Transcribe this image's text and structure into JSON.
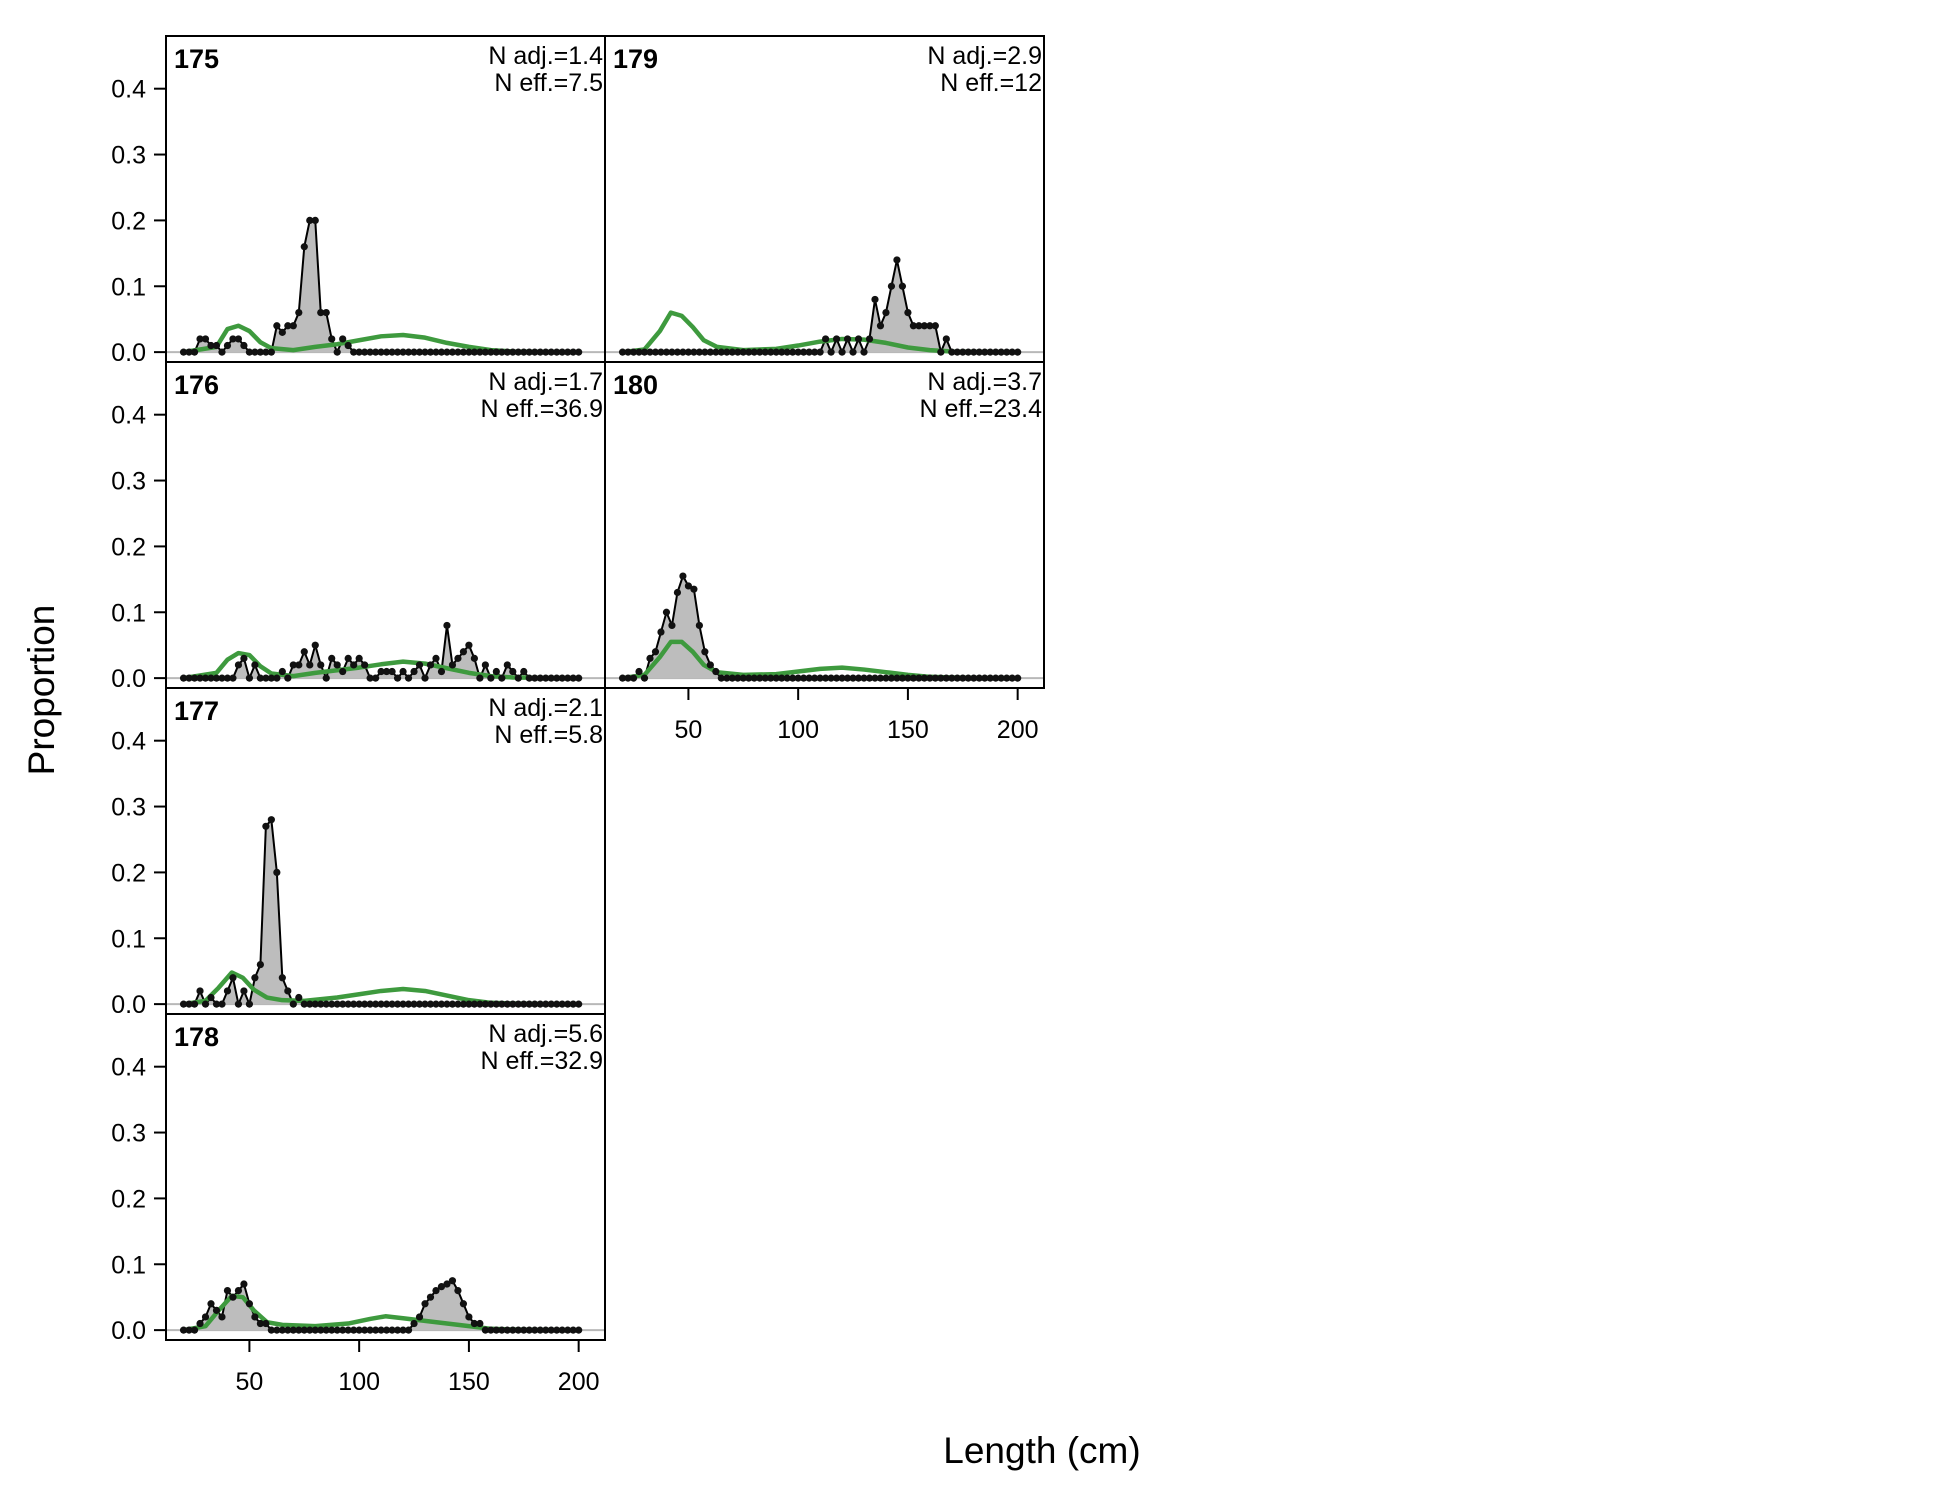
{
  "chart_data": {
    "type": "area",
    "xlabel": "Length (cm)",
    "ylabel": "Proportion",
    "xlim": [
      12,
      212
    ],
    "ylim": [
      -0.015,
      0.48
    ],
    "x_ticks": [
      50,
      100,
      150,
      200
    ],
    "y_ticks": [
      0.0,
      0.1,
      0.2,
      0.3,
      0.4
    ],
    "y_tick_labels": [
      "0.0",
      "0.1",
      "0.2",
      "0.3",
      "0.4"
    ],
    "bin_start": 20,
    "bin_width": 2.5,
    "colors": {
      "observed_fill": "#bdbdbd",
      "observed_line": "#000000",
      "expected_line": "#3e9a3e",
      "zero_line": "#b8b8b8"
    },
    "panels": [
      {
        "id": "175",
        "n_adj": "N adj.=1.4",
        "n_eff": "N eff.=7.5",
        "observed": [
          [
            27.5,
            0.02
          ],
          [
            30,
            0.02
          ],
          [
            32.5,
            0.01
          ],
          [
            35,
            0.01
          ],
          [
            40,
            0.01
          ],
          [
            42.5,
            0.02
          ],
          [
            45,
            0.02
          ],
          [
            47.5,
            0.01
          ],
          [
            62.5,
            0.04
          ],
          [
            65,
            0.03
          ],
          [
            67.5,
            0.04
          ],
          [
            70,
            0.04
          ],
          [
            72.5,
            0.06
          ],
          [
            75,
            0.16
          ],
          [
            77.5,
            0.2
          ],
          [
            80,
            0.2
          ],
          [
            82.5,
            0.06
          ],
          [
            85,
            0.06
          ],
          [
            87.5,
            0.02
          ],
          [
            92.5,
            0.02
          ],
          [
            95,
            0.01
          ]
        ],
        "expected": [
          [
            20,
            0
          ],
          [
            35,
            0.008
          ],
          [
            40,
            0.035
          ],
          [
            45,
            0.04
          ],
          [
            50,
            0.032
          ],
          [
            55,
            0.015
          ],
          [
            60,
            0.006
          ],
          [
            70,
            0.003
          ],
          [
            80,
            0.008
          ],
          [
            90,
            0.012
          ],
          [
            100,
            0.018
          ],
          [
            110,
            0.024
          ],
          [
            120,
            0.026
          ],
          [
            130,
            0.022
          ],
          [
            140,
            0.014
          ],
          [
            150,
            0.008
          ],
          [
            160,
            0.003
          ],
          [
            170,
            0.001
          ],
          [
            200,
            0
          ]
        ]
      },
      {
        "id": "176",
        "n_adj": "N adj.=1.7",
        "n_eff": "N eff.=36.9",
        "observed": [
          [
            45,
            0.02
          ],
          [
            47.5,
            0.03
          ],
          [
            52.5,
            0.02
          ],
          [
            65,
            0.01
          ],
          [
            70,
            0.02
          ],
          [
            72.5,
            0.02
          ],
          [
            75,
            0.04
          ],
          [
            77.5,
            0.02
          ],
          [
            80,
            0.05
          ],
          [
            82.5,
            0.02
          ],
          [
            87.5,
            0.03
          ],
          [
            90,
            0.02
          ],
          [
            92.5,
            0.01
          ],
          [
            95,
            0.03
          ],
          [
            97.5,
            0.02
          ],
          [
            100,
            0.03
          ],
          [
            102.5,
            0.02
          ],
          [
            110,
            0.01
          ],
          [
            112.5,
            0.01
          ],
          [
            115,
            0.01
          ],
          [
            120,
            0.01
          ],
          [
            125,
            0.01
          ],
          [
            127.5,
            0.02
          ],
          [
            132.5,
            0.02
          ],
          [
            135,
            0.03
          ],
          [
            137.5,
            0.01
          ],
          [
            140,
            0.08
          ],
          [
            142.5,
            0.02
          ],
          [
            145,
            0.03
          ],
          [
            147.5,
            0.04
          ],
          [
            150,
            0.05
          ],
          [
            152.5,
            0.03
          ],
          [
            157.5,
            0.02
          ],
          [
            162.5,
            0.01
          ],
          [
            167.5,
            0.02
          ],
          [
            170,
            0.01
          ],
          [
            175,
            0.01
          ]
        ],
        "expected": [
          [
            20,
            0
          ],
          [
            35,
            0.008
          ],
          [
            40,
            0.028
          ],
          [
            45,
            0.038
          ],
          [
            50,
            0.035
          ],
          [
            55,
            0.018
          ],
          [
            60,
            0.007
          ],
          [
            70,
            0.003
          ],
          [
            80,
            0.008
          ],
          [
            90,
            0.012
          ],
          [
            100,
            0.016
          ],
          [
            110,
            0.021
          ],
          [
            120,
            0.025
          ],
          [
            130,
            0.022
          ],
          [
            140,
            0.015
          ],
          [
            150,
            0.008
          ],
          [
            160,
            0.003
          ],
          [
            170,
            0.001
          ],
          [
            200,
            0
          ]
        ]
      },
      {
        "id": "177",
        "n_adj": "N adj.=2.1",
        "n_eff": "N eff.=5.8",
        "observed": [
          [
            27.5,
            0.02
          ],
          [
            32.5,
            0.01
          ],
          [
            40,
            0.02
          ],
          [
            42.5,
            0.04
          ],
          [
            47.5,
            0.02
          ],
          [
            52.5,
            0.04
          ],
          [
            55,
            0.06
          ],
          [
            57.5,
            0.27
          ],
          [
            60,
            0.28
          ],
          [
            62.5,
            0.2
          ],
          [
            65,
            0.04
          ],
          [
            67.5,
            0.02
          ],
          [
            72.5,
            0.01
          ]
        ],
        "expected": [
          [
            20,
            0
          ],
          [
            30,
            0.005
          ],
          [
            36,
            0.025
          ],
          [
            42,
            0.048
          ],
          [
            47,
            0.04
          ],
          [
            52,
            0.022
          ],
          [
            58,
            0.01
          ],
          [
            65,
            0.006
          ],
          [
            75,
            0.005
          ],
          [
            90,
            0.01
          ],
          [
            100,
            0.015
          ],
          [
            110,
            0.02
          ],
          [
            120,
            0.023
          ],
          [
            130,
            0.02
          ],
          [
            140,
            0.013
          ],
          [
            150,
            0.006
          ],
          [
            160,
            0.002
          ],
          [
            170,
            0.001
          ],
          [
            200,
            0
          ]
        ]
      },
      {
        "id": "178",
        "n_adj": "N adj.=5.6",
        "n_eff": "N eff.=32.9",
        "observed": [
          [
            27.5,
            0.01
          ],
          [
            30,
            0.02
          ],
          [
            32.5,
            0.04
          ],
          [
            35,
            0.03
          ],
          [
            37.5,
            0.02
          ],
          [
            40,
            0.06
          ],
          [
            42.5,
            0.05
          ],
          [
            45,
            0.06
          ],
          [
            47.5,
            0.07
          ],
          [
            50,
            0.04
          ],
          [
            52.5,
            0.02
          ],
          [
            55,
            0.01
          ],
          [
            57.5,
            0.01
          ],
          [
            125,
            0.01
          ],
          [
            127.5,
            0.02
          ],
          [
            130,
            0.04
          ],
          [
            132.5,
            0.05
          ],
          [
            135,
            0.06
          ],
          [
            137.5,
            0.066
          ],
          [
            140,
            0.07
          ],
          [
            142.5,
            0.075
          ],
          [
            145,
            0.06
          ],
          [
            147.5,
            0.04
          ],
          [
            150,
            0.02
          ],
          [
            152.5,
            0.01
          ],
          [
            155,
            0.01
          ]
        ],
        "expected": [
          [
            20,
            0
          ],
          [
            30,
            0.006
          ],
          [
            36,
            0.03
          ],
          [
            42,
            0.052
          ],
          [
            47,
            0.05
          ],
          [
            52,
            0.03
          ],
          [
            58,
            0.012
          ],
          [
            65,
            0.008
          ],
          [
            80,
            0.006
          ],
          [
            95,
            0.01
          ],
          [
            105,
            0.017
          ],
          [
            112,
            0.021
          ],
          [
            120,
            0.018
          ],
          [
            130,
            0.014
          ],
          [
            140,
            0.01
          ],
          [
            150,
            0.006
          ],
          [
            160,
            0.002
          ],
          [
            170,
            0.001
          ],
          [
            200,
            0
          ]
        ]
      },
      {
        "id": "179",
        "n_adj": "N adj.=2.9",
        "n_eff": "N eff.=12",
        "observed": [
          [
            112.5,
            0.02
          ],
          [
            117.5,
            0.02
          ],
          [
            122.5,
            0.02
          ],
          [
            127.5,
            0.02
          ],
          [
            132.5,
            0.02
          ],
          [
            135,
            0.08
          ],
          [
            137.5,
            0.04
          ],
          [
            140,
            0.06
          ],
          [
            142.5,
            0.1
          ],
          [
            145,
            0.14
          ],
          [
            147.5,
            0.1
          ],
          [
            150,
            0.06
          ],
          [
            152.5,
            0.04
          ],
          [
            155,
            0.04
          ],
          [
            157.5,
            0.04
          ],
          [
            160,
            0.04
          ],
          [
            162.5,
            0.04
          ],
          [
            167.5,
            0.02
          ]
        ],
        "expected": [
          [
            20,
            0
          ],
          [
            30,
            0.004
          ],
          [
            37,
            0.032
          ],
          [
            42,
            0.06
          ],
          [
            47,
            0.055
          ],
          [
            52,
            0.038
          ],
          [
            57,
            0.018
          ],
          [
            63,
            0.008
          ],
          [
            75,
            0.003
          ],
          [
            90,
            0.005
          ],
          [
            100,
            0.01
          ],
          [
            110,
            0.016
          ],
          [
            120,
            0.02
          ],
          [
            130,
            0.019
          ],
          [
            140,
            0.014
          ],
          [
            150,
            0.007
          ],
          [
            160,
            0.003
          ],
          [
            170,
            0.001
          ],
          [
            200,
            0
          ]
        ]
      },
      {
        "id": "180",
        "n_adj": "N adj.=3.7",
        "n_eff": "N eff.=23.4",
        "observed": [
          [
            27.5,
            0.01
          ],
          [
            32.5,
            0.03
          ],
          [
            35,
            0.04
          ],
          [
            37.5,
            0.07
          ],
          [
            40,
            0.1
          ],
          [
            42.5,
            0.08
          ],
          [
            45,
            0.13
          ],
          [
            47.5,
            0.155
          ],
          [
            50,
            0.14
          ],
          [
            52.5,
            0.135
          ],
          [
            55,
            0.08
          ],
          [
            57.5,
            0.04
          ],
          [
            60,
            0.02
          ],
          [
            62.5,
            0.01
          ]
        ],
        "expected": [
          [
            20,
            0
          ],
          [
            30,
            0.005
          ],
          [
            37,
            0.032
          ],
          [
            42,
            0.055
          ],
          [
            47,
            0.055
          ],
          [
            52,
            0.04
          ],
          [
            57,
            0.02
          ],
          [
            63,
            0.009
          ],
          [
            75,
            0.005
          ],
          [
            90,
            0.006
          ],
          [
            100,
            0.01
          ],
          [
            110,
            0.014
          ],
          [
            120,
            0.016
          ],
          [
            130,
            0.013
          ],
          [
            140,
            0.009
          ],
          [
            150,
            0.005
          ],
          [
            160,
            0.002
          ],
          [
            170,
            0.001
          ],
          [
            200,
            0
          ]
        ]
      }
    ]
  }
}
